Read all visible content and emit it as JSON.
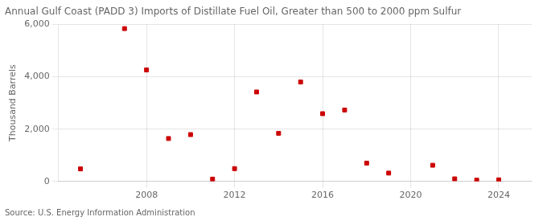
{
  "chart_data": {
    "type": "scatter",
    "title": "Annual Gulf Coast (PADD 3) Imports of Distillate Fuel Oil, Greater than 500 to 2000 ppm Sulfur",
    "ylabel": "Thousand Barrels",
    "annotations": [
      "Source: U.S. Energy Information Administration"
    ],
    "x": [
      2005,
      2007,
      2008,
      2009,
      2010,
      2011,
      2012,
      2013,
      2014,
      2015,
      2016,
      2017,
      2018,
      2019,
      2021,
      2022,
      2023,
      2024
    ],
    "values": [
      480,
      5840,
      4260,
      1640,
      1790,
      90,
      490,
      3420,
      1840,
      3800,
      2590,
      2730,
      700,
      320,
      620,
      100,
      50,
      60
    ],
    "color": "#cc0000",
    "marker": "square",
    "xlim": [
      2004.0,
      2025.5
    ],
    "xticks": [
      2008,
      2012,
      2016,
      2020,
      2024
    ],
    "ylim": [
      0,
      6000
    ],
    "yticks": [
      0,
      {
        "value": 2000,
        "label": "2,000"
      },
      {
        "value": 4000,
        "label": "4,000"
      },
      {
        "value": 6000,
        "label": "6,000"
      }
    ],
    "grid": true
  }
}
